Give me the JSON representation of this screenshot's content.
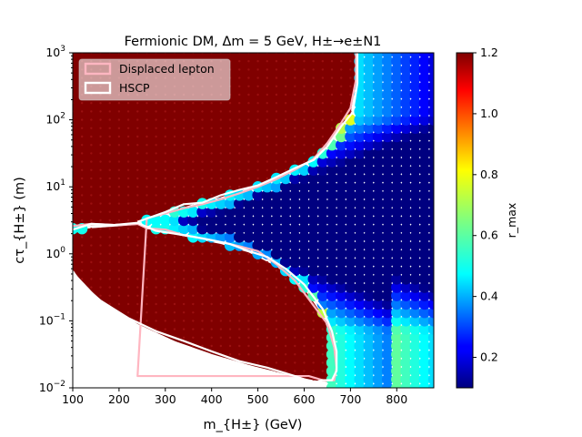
{
  "chart_data": {
    "type": "scatter",
    "title": "Fermionic DM, Δm = 5 GeV, H±→e±N1",
    "xlabel": "m_{H±} (GeV)",
    "ylabel": "cτ_{H±} (m)",
    "xlim": [
      100,
      880
    ],
    "ylim": [
      0.01,
      1000
    ],
    "y_scale": "log",
    "x_ticks": [
      "100",
      "200",
      "300",
      "400",
      "500",
      "600",
      "700",
      "800"
    ],
    "y_ticks": [
      "10^-2",
      "10^-1",
      "10^0",
      "10^1",
      "10^2",
      "10^3"
    ],
    "colorbar": {
      "label": "r_max",
      "range": [
        0.1,
        1.2
      ],
      "ticks": [
        "0.2",
        "0.4",
        "0.6",
        "0.8",
        "1.0",
        "1.2"
      ],
      "colormap": "jet"
    },
    "grid": false,
    "legend": {
      "placement": "top-left",
      "entries": [
        {
          "name": "Displaced lepton",
          "color": "#ffb6c1"
        },
        {
          "name": "HSCP",
          "color": "#ffffff"
        }
      ]
    },
    "saturated_region_color": "#800000",
    "contours": [
      {
        "name": "Displaced lepton",
        "color": "#ffb6c1",
        "x": [
          100,
          140,
          190,
          240,
          260,
          300,
          340,
          380,
          420,
          460,
          500,
          540,
          580,
          620,
          650,
          665,
          670,
          665,
          640,
          610,
          570,
          530,
          490,
          450,
          400,
          340,
          280,
          240,
          260,
          300,
          340,
          380,
          420,
          460,
          500,
          540,
          580,
          620,
          650,
          680,
          700,
          712,
          712
        ],
        "y": [
          2.6,
          2.8,
          2.7,
          2.8,
          2.4,
          2.3,
          1.9,
          1.7,
          1.5,
          1.3,
          1.1,
          0.7,
          0.4,
          0.17,
          0.09,
          0.04,
          0.02,
          0.013,
          0.013,
          0.015,
          0.015,
          0.015,
          0.015,
          0.015,
          0.015,
          0.015,
          0.015,
          0.015,
          3.4,
          4.0,
          4.8,
          5.5,
          6.5,
          8.0,
          10.0,
          13.0,
          18.0,
          26.0,
          45.0,
          90.0,
          150.0,
          400.0,
          1000.0
        ]
      },
      {
        "name": "HSCP",
        "color": "#ffffff",
        "x": [
          100,
          140,
          190,
          240,
          280,
          320,
          360,
          400,
          440,
          480,
          520,
          560,
          600,
          640,
          660,
          670,
          670,
          660,
          640,
          620,
          580,
          520,
          460,
          400,
          340,
          280,
          220,
          160,
          120,
          100
        ],
        "y": [
          2.3,
          2.8,
          2.7,
          2.9,
          2.2,
          2.0,
          1.8,
          1.6,
          1.4,
          1.1,
          0.9,
          0.6,
          0.35,
          0.15,
          0.07,
          0.035,
          0.018,
          0.013,
          0.013,
          0.012,
          0.015,
          0.02,
          0.025,
          0.035,
          0.05,
          0.07,
          0.11,
          0.2,
          0.35,
          0.55
        ]
      },
      {
        "name": "HSCP",
        "color": "#ffffff",
        "x": [
          240,
          300,
          340,
          380,
          420,
          460,
          500,
          540,
          580,
          620,
          650,
          680,
          705,
          715,
          715
        ],
        "y": [
          3.0,
          4.2,
          5.5,
          5.8,
          7.5,
          9.0,
          10.5,
          14.0,
          19.0,
          25.0,
          40.0,
          80.0,
          130.0,
          350.0,
          1000.0
        ]
      }
    ]
  }
}
